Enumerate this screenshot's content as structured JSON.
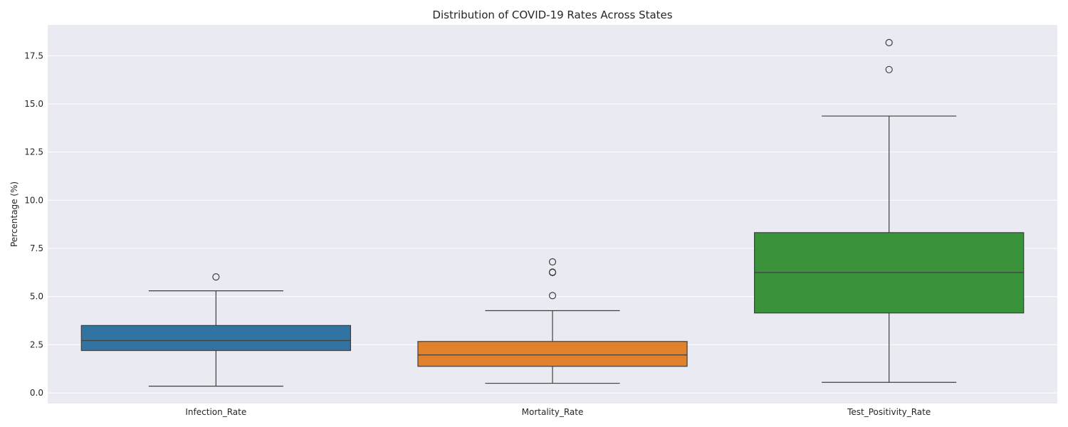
{
  "chart_data": {
    "type": "box",
    "title": "Distribution of COVID-19 Rates Across States",
    "xlabel": "",
    "ylabel": "Percentage (%)",
    "ylim": [
      -0.55,
      19.1
    ],
    "yticks": [
      0.0,
      2.5,
      5.0,
      7.5,
      10.0,
      12.5,
      15.0,
      17.5
    ],
    "ytick_labels": [
      "0.0",
      "2.5",
      "5.0",
      "7.5",
      "10.0",
      "12.5",
      "15.0",
      "17.5"
    ],
    "grid": true,
    "categories": [
      "Infection_Rate",
      "Mortality_Rate",
      "Test_Positivity_Rate"
    ],
    "boxes": [
      {
        "category": "Infection_Rate",
        "color": "#3274a1",
        "whisker_low": 0.35,
        "q1": 2.2,
        "median": 2.72,
        "q3": 3.5,
        "whisker_high": 5.3,
        "outliers": [
          6.02
        ]
      },
      {
        "category": "Mortality_Rate",
        "color": "#e1812c",
        "whisker_low": 0.5,
        "q1": 1.38,
        "median": 1.97,
        "q3": 2.67,
        "whisker_high": 4.27,
        "outliers": [
          5.05,
          6.25,
          6.27,
          6.8
        ]
      },
      {
        "category": "Test_Positivity_Rate",
        "color": "#3a923a",
        "whisker_low": 0.55,
        "q1": 4.15,
        "median": 6.25,
        "q3": 8.32,
        "whisker_high": 14.37,
        "outliers": [
          16.78,
          18.18
        ]
      }
    ]
  }
}
